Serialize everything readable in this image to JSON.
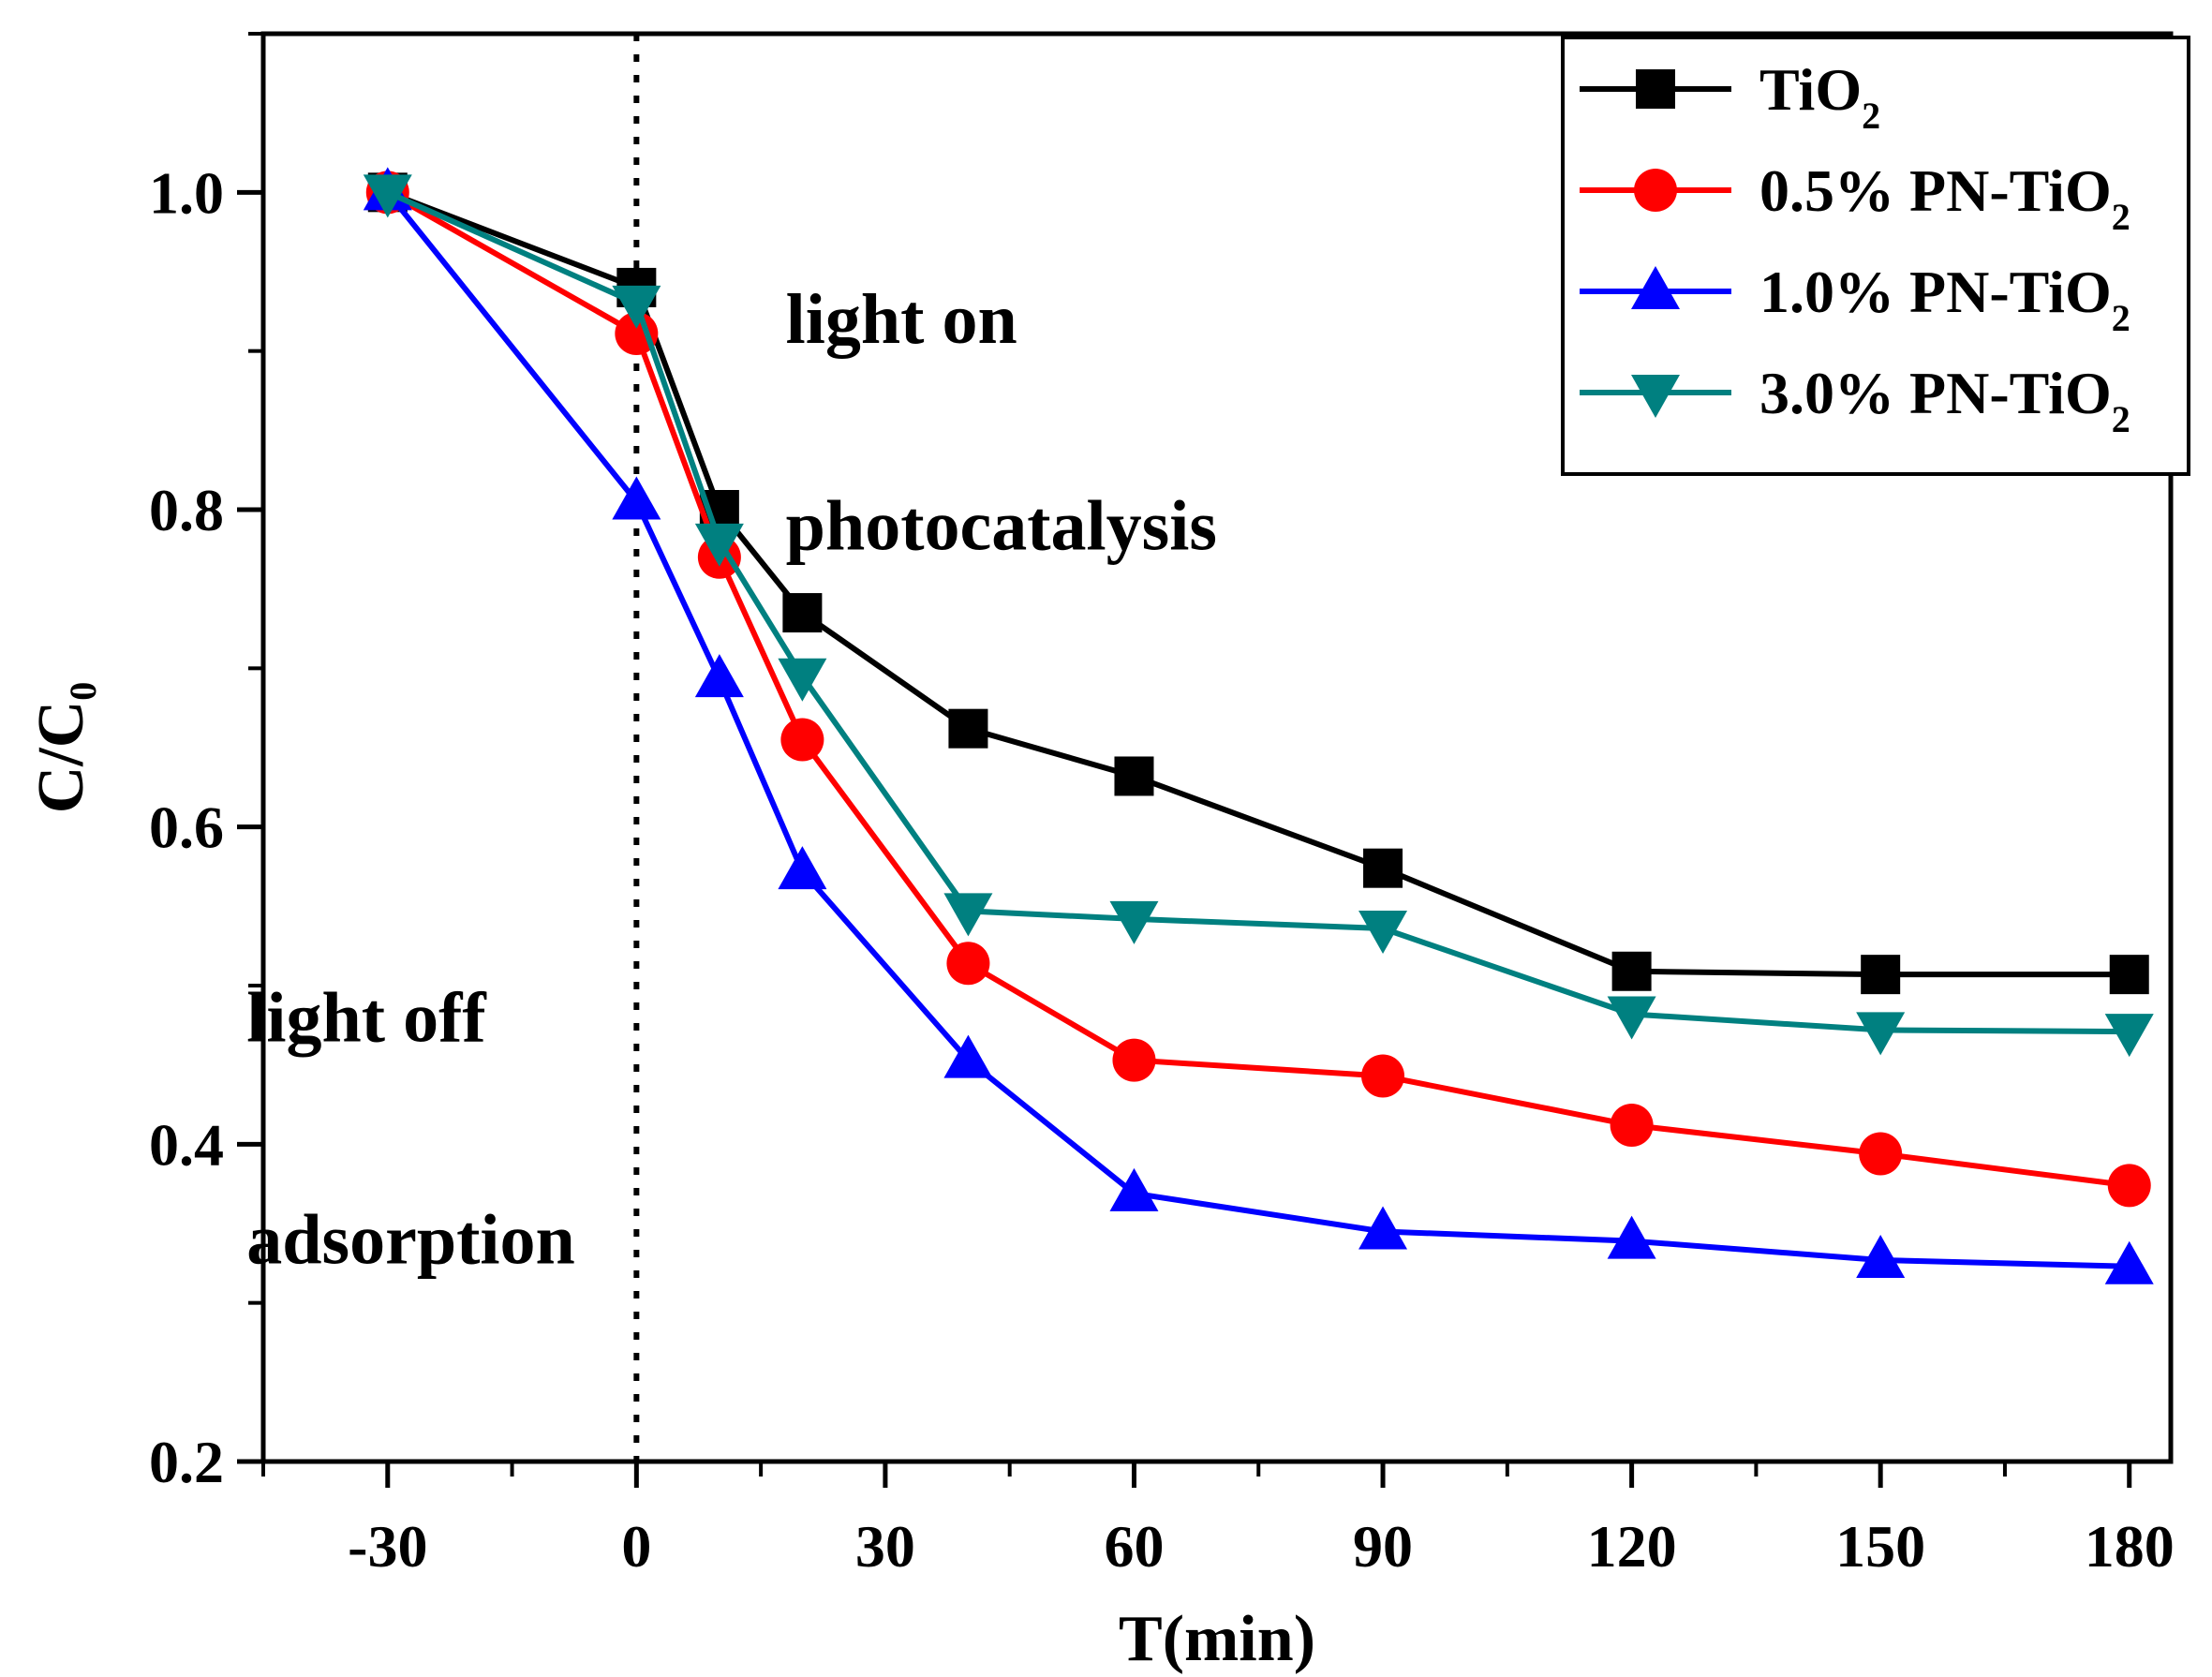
{
  "chart_data": {
    "type": "line",
    "title": "",
    "xlabel": "T(min)",
    "ylabel": {
      "main": "C/C",
      "sub": "0"
    },
    "xlim": [
      -45,
      185
    ],
    "ylim": [
      0.2,
      1.1
    ],
    "x_ticks": [
      -30,
      0,
      30,
      60,
      90,
      120,
      150,
      180
    ],
    "x_tick_labels": [
      "-30",
      "0",
      "30",
      "60",
      "90",
      "120",
      "150",
      "180"
    ],
    "y_ticks": [
      0.2,
      0.4,
      0.6,
      0.8,
      1.0
    ],
    "y_tick_labels": [
      "0.2",
      "0.4",
      "0.6",
      "0.8",
      "1.0"
    ],
    "grid": false,
    "legend_position": "top-right",
    "x": [
      -30,
      0,
      10,
      20,
      40,
      60,
      90,
      120,
      150,
      180
    ],
    "series": [
      {
        "name": "TiO",
        "sub": "2",
        "prefix": "",
        "color": "#000000",
        "marker": "square",
        "values": [
          1.0,
          0.94,
          0.8,
          0.735,
          0.662,
          0.632,
          0.574,
          0.509,
          0.507,
          0.507
        ]
      },
      {
        "name": "0.5% PN-TiO",
        "sub": "2",
        "color": "#ff0000",
        "marker": "circle",
        "values": [
          1.0,
          0.911,
          0.77,
          0.655,
          0.514,
          0.453,
          0.443,
          0.412,
          0.394,
          0.374
        ]
      },
      {
        "name": "1.0% PN-TiO",
        "sub": "2",
        "color": "#0000ff",
        "marker": "triangle-up",
        "values": [
          1.0,
          0.805,
          0.693,
          0.572,
          0.453,
          0.369,
          0.345,
          0.339,
          0.327,
          0.323
        ]
      },
      {
        "name": "3.0% PN-TiO",
        "sub": "2",
        "color": "#008080",
        "marker": "triangle-down",
        "values": [
          1.0,
          0.93,
          0.78,
          0.695,
          0.547,
          0.542,
          0.536,
          0.482,
          0.472,
          0.471
        ]
      }
    ],
    "annotations": [
      {
        "text": "light on",
        "x": 18,
        "y": 0.905
      },
      {
        "text": "photocatalysis",
        "x": 18,
        "y": 0.775
      },
      {
        "text": "light off",
        "x": -47,
        "y": 0.465
      },
      {
        "text": "adsorption",
        "x": -47,
        "y": 0.325
      }
    ],
    "divider_x": 0
  }
}
